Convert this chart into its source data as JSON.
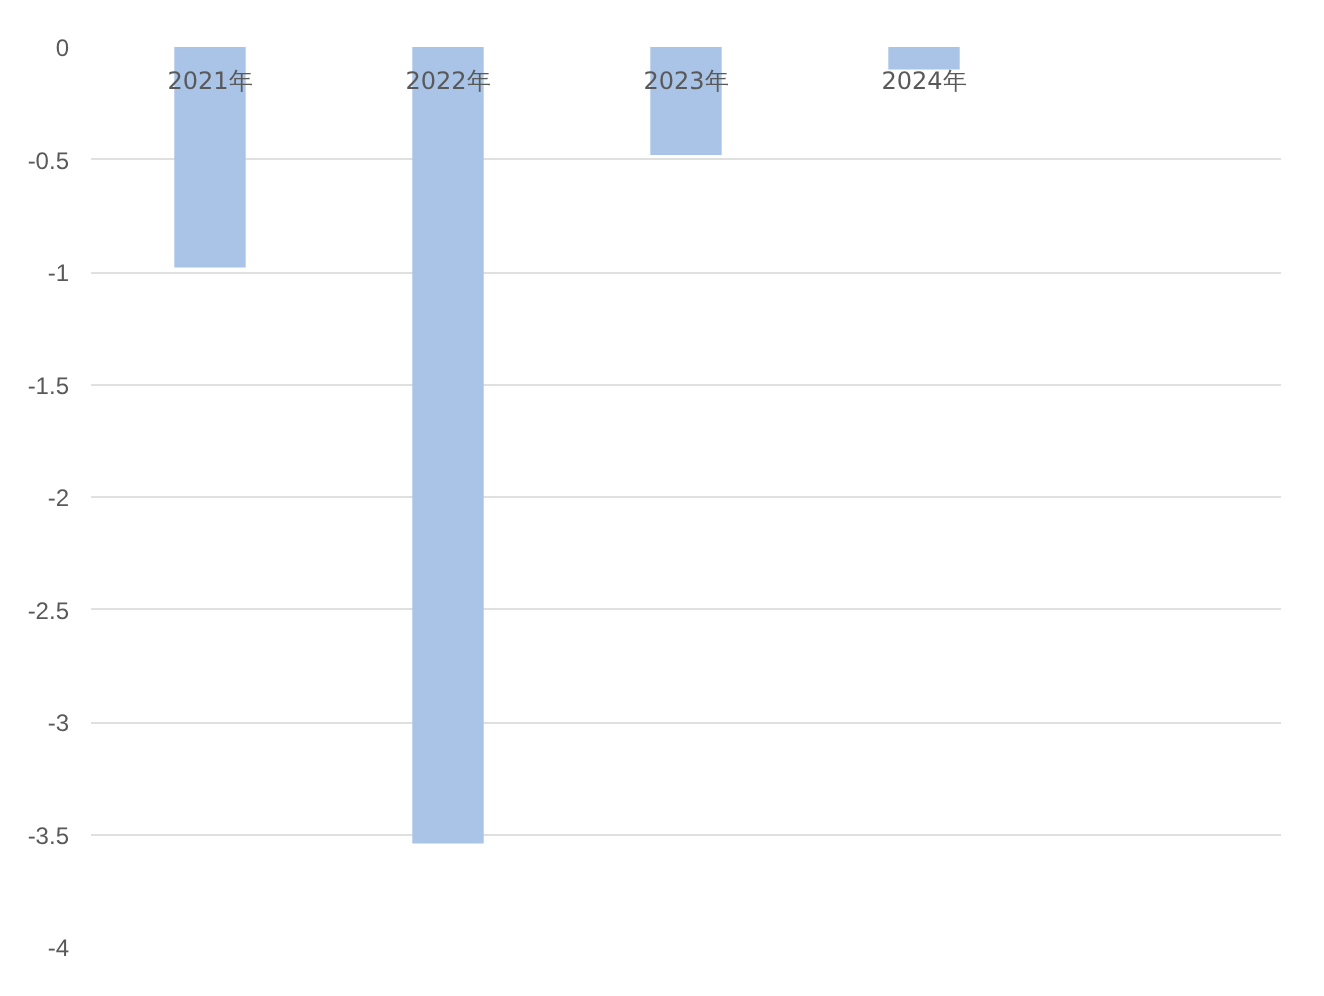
{
  "chart_data": {
    "type": "bar",
    "categories": [
      "2021年",
      "2022年",
      "2023年",
      "2024年",
      null
    ],
    "values": [
      -0.98,
      -3.54,
      -0.48,
      -0.1,
      null
    ],
    "color": "#a9c4e6",
    "ylim": [
      -4,
      0
    ],
    "yticks": [
      0,
      -0.5,
      -1,
      -1.5,
      -2,
      -2.5,
      -3,
      -3.5,
      -4
    ],
    "grid": "y"
  }
}
